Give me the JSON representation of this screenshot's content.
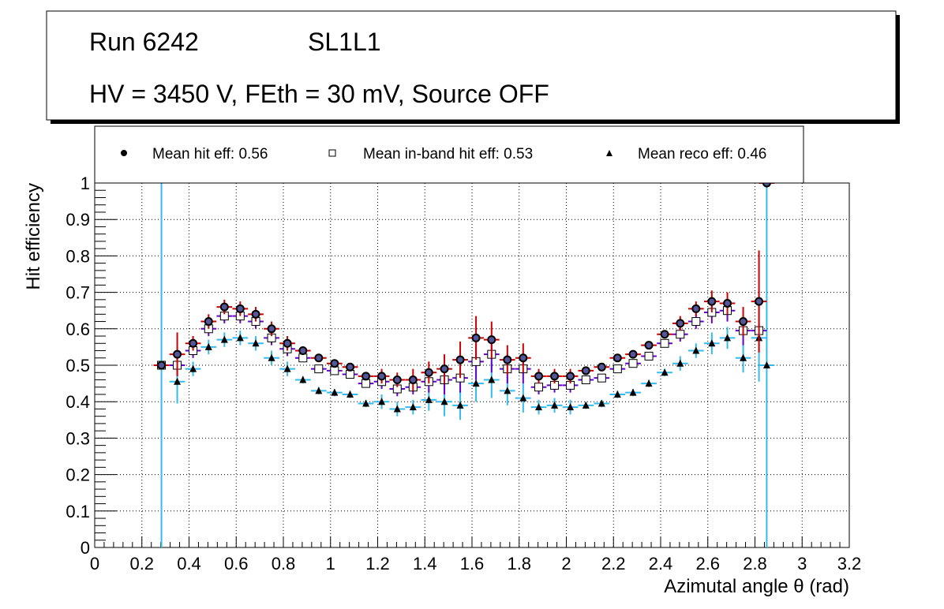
{
  "title_box": {
    "run": "Run 6242",
    "layer": "SL1L1",
    "conditions": "HV = 3450 V, FEth = 30 mV, Source OFF"
  },
  "legend": {
    "hit": "Mean hit  eff: 0.56",
    "inband": "Mean in-band hit eff: 0.53",
    "reco": "Mean reco eff: 0.46"
  },
  "colors": {
    "hit_error": "#cc0000",
    "hit_marker_fill": "#555599",
    "inband_error": "#6600cc",
    "reco_error": "#33bbee"
  },
  "chart_data": {
    "type": "scatter",
    "title": "",
    "xlabel": "Azimutal angle θ (rad)",
    "ylabel": "Hit efficiency",
    "xlim": [
      0,
      3.2
    ],
    "ylim": [
      0,
      1
    ],
    "grid": true,
    "bin_half_width": 0.033,
    "x_ticks": [
      "0",
      "0.2",
      "0.4",
      "0.6",
      "0.8",
      "1",
      "1.2",
      "1.4",
      "1.6",
      "1.8",
      "2",
      "2.2",
      "2.4",
      "2.6",
      "2.8",
      "3",
      "3.2"
    ],
    "y_ticks": [
      "0",
      "0.1",
      "0.2",
      "0.3",
      "0.4",
      "0.5",
      "0.6",
      "0.7",
      "0.8",
      "0.9",
      "1"
    ],
    "series": [
      {
        "name": "Mean hit  eff: 0.56",
        "marker": "circle",
        "points": [
          {
            "x": 0.283,
            "y": 0.5,
            "err": 0.0
          },
          {
            "x": 0.35,
            "y": 0.53,
            "err": 0.06
          },
          {
            "x": 0.417,
            "y": 0.56,
            "err": 0.02
          },
          {
            "x": 0.483,
            "y": 0.62,
            "err": 0.02
          },
          {
            "x": 0.55,
            "y": 0.66,
            "err": 0.02
          },
          {
            "x": 0.617,
            "y": 0.655,
            "err": 0.02
          },
          {
            "x": 0.683,
            "y": 0.64,
            "err": 0.02
          },
          {
            "x": 0.75,
            "y": 0.6,
            "err": 0.02
          },
          {
            "x": 0.817,
            "y": 0.56,
            "err": 0.02
          },
          {
            "x": 0.883,
            "y": 0.54,
            "err": 0.01
          },
          {
            "x": 0.95,
            "y": 0.52,
            "err": 0.01
          },
          {
            "x": 1.017,
            "y": 0.505,
            "err": 0.01
          },
          {
            "x": 1.083,
            "y": 0.495,
            "err": 0.01
          },
          {
            "x": 1.15,
            "y": 0.47,
            "err": 0.01
          },
          {
            "x": 1.217,
            "y": 0.47,
            "err": 0.02
          },
          {
            "x": 1.283,
            "y": 0.46,
            "err": 0.02
          },
          {
            "x": 1.35,
            "y": 0.46,
            "err": 0.03
          },
          {
            "x": 1.417,
            "y": 0.48,
            "err": 0.03
          },
          {
            "x": 1.483,
            "y": 0.49,
            "err": 0.04
          },
          {
            "x": 1.55,
            "y": 0.515,
            "err": 0.05
          },
          {
            "x": 1.617,
            "y": 0.575,
            "err": 0.06
          },
          {
            "x": 1.683,
            "y": 0.57,
            "err": 0.05
          },
          {
            "x": 1.75,
            "y": 0.515,
            "err": 0.04
          },
          {
            "x": 1.817,
            "y": 0.52,
            "err": 0.04
          },
          {
            "x": 1.883,
            "y": 0.47,
            "err": 0.02
          },
          {
            "x": 1.95,
            "y": 0.47,
            "err": 0.02
          },
          {
            "x": 2.017,
            "y": 0.47,
            "err": 0.02
          },
          {
            "x": 2.083,
            "y": 0.485,
            "err": 0.01
          },
          {
            "x": 2.15,
            "y": 0.495,
            "err": 0.01
          },
          {
            "x": 2.217,
            "y": 0.52,
            "err": 0.01
          },
          {
            "x": 2.283,
            "y": 0.53,
            "err": 0.01
          },
          {
            "x": 2.35,
            "y": 0.555,
            "err": 0.01
          },
          {
            "x": 2.417,
            "y": 0.585,
            "err": 0.01
          },
          {
            "x": 2.483,
            "y": 0.615,
            "err": 0.02
          },
          {
            "x": 2.55,
            "y": 0.655,
            "err": 0.02
          },
          {
            "x": 2.617,
            "y": 0.675,
            "err": 0.03
          },
          {
            "x": 2.683,
            "y": 0.67,
            "err": 0.03
          },
          {
            "x": 2.75,
            "y": 0.62,
            "err": 0.04
          },
          {
            "x": 2.817,
            "y": 0.675,
            "err": 0.14
          },
          {
            "x": 2.85,
            "y": 1.0,
            "err": 0.0
          }
        ]
      },
      {
        "name": "Mean in-band hit eff: 0.53",
        "marker": "open-square",
        "points": [
          {
            "x": 0.283,
            "y": 0.5,
            "err": 0.0
          },
          {
            "x": 0.35,
            "y": 0.5,
            "err": 0.03
          },
          {
            "x": 0.417,
            "y": 0.54,
            "err": 0.02
          },
          {
            "x": 0.483,
            "y": 0.6,
            "err": 0.02
          },
          {
            "x": 0.55,
            "y": 0.635,
            "err": 0.02
          },
          {
            "x": 0.617,
            "y": 0.635,
            "err": 0.02
          },
          {
            "x": 0.683,
            "y": 0.62,
            "err": 0.02
          },
          {
            "x": 0.75,
            "y": 0.575,
            "err": 0.02
          },
          {
            "x": 0.817,
            "y": 0.545,
            "err": 0.02
          },
          {
            "x": 0.883,
            "y": 0.52,
            "err": 0.01
          },
          {
            "x": 0.95,
            "y": 0.49,
            "err": 0.01
          },
          {
            "x": 1.017,
            "y": 0.485,
            "err": 0.01
          },
          {
            "x": 1.083,
            "y": 0.475,
            "err": 0.01
          },
          {
            "x": 1.15,
            "y": 0.45,
            "err": 0.01
          },
          {
            "x": 1.217,
            "y": 0.455,
            "err": 0.02
          },
          {
            "x": 1.283,
            "y": 0.435,
            "err": 0.02
          },
          {
            "x": 1.35,
            "y": 0.44,
            "err": 0.02
          },
          {
            "x": 1.417,
            "y": 0.455,
            "err": 0.03
          },
          {
            "x": 1.483,
            "y": 0.46,
            "err": 0.04
          },
          {
            "x": 1.55,
            "y": 0.465,
            "err": 0.04
          },
          {
            "x": 1.617,
            "y": 0.51,
            "err": 0.05
          },
          {
            "x": 1.683,
            "y": 0.53,
            "err": 0.05
          },
          {
            "x": 1.75,
            "y": 0.49,
            "err": 0.04
          },
          {
            "x": 1.817,
            "y": 0.49,
            "err": 0.04
          },
          {
            "x": 1.883,
            "y": 0.44,
            "err": 0.02
          },
          {
            "x": 1.95,
            "y": 0.445,
            "err": 0.02
          },
          {
            "x": 2.017,
            "y": 0.445,
            "err": 0.02
          },
          {
            "x": 2.083,
            "y": 0.46,
            "err": 0.01
          },
          {
            "x": 2.15,
            "y": 0.465,
            "err": 0.01
          },
          {
            "x": 2.217,
            "y": 0.49,
            "err": 0.01
          },
          {
            "x": 2.283,
            "y": 0.505,
            "err": 0.01
          },
          {
            "x": 2.35,
            "y": 0.525,
            "err": 0.01
          },
          {
            "x": 2.417,
            "y": 0.56,
            "err": 0.01
          },
          {
            "x": 2.483,
            "y": 0.585,
            "err": 0.02
          },
          {
            "x": 2.55,
            "y": 0.62,
            "err": 0.02
          },
          {
            "x": 2.617,
            "y": 0.645,
            "err": 0.03
          },
          {
            "x": 2.683,
            "y": 0.65,
            "err": 0.03
          },
          {
            "x": 2.75,
            "y": 0.595,
            "err": 0.04
          },
          {
            "x": 2.817,
            "y": 0.595,
            "err": 0.02
          }
        ]
      },
      {
        "name": "Mean reco eff: 0.46",
        "marker": "triangle",
        "points": [
          {
            "x": 0.283,
            "y": 0.5,
            "err": 0.5
          },
          {
            "x": 0.35,
            "y": 0.455,
            "err": 0.06
          },
          {
            "x": 0.417,
            "y": 0.49,
            "err": 0.02
          },
          {
            "x": 0.483,
            "y": 0.55,
            "err": 0.02
          },
          {
            "x": 0.55,
            "y": 0.57,
            "err": 0.02
          },
          {
            "x": 0.617,
            "y": 0.575,
            "err": 0.02
          },
          {
            "x": 0.683,
            "y": 0.56,
            "err": 0.02
          },
          {
            "x": 0.75,
            "y": 0.52,
            "err": 0.02
          },
          {
            "x": 0.817,
            "y": 0.49,
            "err": 0.02
          },
          {
            "x": 0.883,
            "y": 0.46,
            "err": 0.01
          },
          {
            "x": 0.95,
            "y": 0.43,
            "err": 0.01
          },
          {
            "x": 1.017,
            "y": 0.425,
            "err": 0.01
          },
          {
            "x": 1.083,
            "y": 0.42,
            "err": 0.01
          },
          {
            "x": 1.15,
            "y": 0.395,
            "err": 0.01
          },
          {
            "x": 1.217,
            "y": 0.4,
            "err": 0.02
          },
          {
            "x": 1.283,
            "y": 0.38,
            "err": 0.02
          },
          {
            "x": 1.35,
            "y": 0.385,
            "err": 0.02
          },
          {
            "x": 1.417,
            "y": 0.405,
            "err": 0.03
          },
          {
            "x": 1.483,
            "y": 0.4,
            "err": 0.04
          },
          {
            "x": 1.55,
            "y": 0.39,
            "err": 0.04
          },
          {
            "x": 1.617,
            "y": 0.45,
            "err": 0.05
          },
          {
            "x": 1.683,
            "y": 0.46,
            "err": 0.05
          },
          {
            "x": 1.75,
            "y": 0.43,
            "err": 0.04
          },
          {
            "x": 1.817,
            "y": 0.41,
            "err": 0.04
          },
          {
            "x": 1.883,
            "y": 0.385,
            "err": 0.02
          },
          {
            "x": 1.95,
            "y": 0.39,
            "err": 0.02
          },
          {
            "x": 2.017,
            "y": 0.385,
            "err": 0.02
          },
          {
            "x": 2.083,
            "y": 0.39,
            "err": 0.01
          },
          {
            "x": 2.15,
            "y": 0.395,
            "err": 0.01
          },
          {
            "x": 2.217,
            "y": 0.42,
            "err": 0.01
          },
          {
            "x": 2.283,
            "y": 0.425,
            "err": 0.01
          },
          {
            "x": 2.35,
            "y": 0.45,
            "err": 0.01
          },
          {
            "x": 2.417,
            "y": 0.48,
            "err": 0.01
          },
          {
            "x": 2.483,
            "y": 0.505,
            "err": 0.02
          },
          {
            "x": 2.55,
            "y": 0.54,
            "err": 0.02
          },
          {
            "x": 2.617,
            "y": 0.56,
            "err": 0.03
          },
          {
            "x": 2.683,
            "y": 0.575,
            "err": 0.03
          },
          {
            "x": 2.75,
            "y": 0.52,
            "err": 0.04
          },
          {
            "x": 2.817,
            "y": 0.575,
            "err": 0.12
          },
          {
            "x": 2.85,
            "y": 0.5,
            "err": 0.5
          }
        ]
      }
    ]
  }
}
